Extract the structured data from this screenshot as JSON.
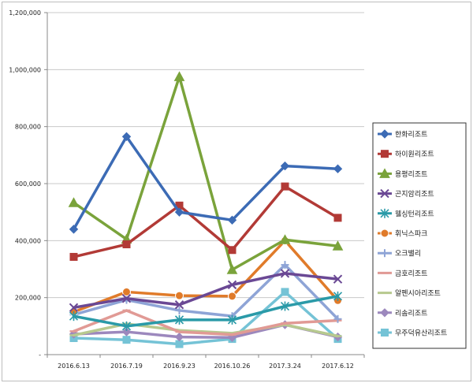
{
  "chart_data": {
    "type": "line",
    "categories": [
      "2016.6.13",
      "2016.7.19",
      "2016.9.23",
      "2016.10.26",
      "2017.3.24",
      "2017.6.12"
    ],
    "ylim": [
      0,
      1200000
    ],
    "y_ticks": [
      "-",
      "200,000",
      "400,000",
      "600,000",
      "800,000",
      "1,000,000",
      "1,200,000"
    ],
    "grid": "horizontal",
    "legend_position": "right",
    "series": [
      {
        "name": "한화리조트",
        "color": "#3c6bb5",
        "marker": "diamond",
        "values": [
          440000,
          765000,
          500000,
          472000,
          662000,
          652000
        ]
      },
      {
        "name": "하이원리조트",
        "color": "#b23a36",
        "marker": "square",
        "values": [
          343000,
          387000,
          523000,
          367000,
          590000,
          480000
        ]
      },
      {
        "name": "용평리조트",
        "color": "#7aa33b",
        "marker": "triangle",
        "values": [
          533000,
          405000,
          975000,
          298000,
          403000,
          381000
        ]
      },
      {
        "name": "곤지암리조트",
        "color": "#6a4894",
        "marker": "x",
        "values": [
          165000,
          197000,
          175000,
          245000,
          285000,
          265000
        ]
      },
      {
        "name": "웰싱턴리조트",
        "color": "#2a9aa8",
        "marker": "star",
        "values": [
          135000,
          100000,
          122000,
          122000,
          170000,
          205000
        ]
      },
      {
        "name": "휘닉스파크",
        "color": "#e07b2a",
        "marker": "circle",
        "values": [
          150000,
          220000,
          207000,
          205000,
          400000,
          190000
        ]
      },
      {
        "name": "오크밸리",
        "color": "#8ea4d6",
        "marker": "plus",
        "values": [
          140000,
          192000,
          155000,
          135000,
          315000,
          125000
        ]
      },
      {
        "name": "금호리조트",
        "color": "#e19a95",
        "marker": "dash",
        "values": [
          82000,
          155000,
          80000,
          70000,
          110000,
          120000
        ]
      },
      {
        "name": "알펜시아리조트",
        "color": "#b7c98f",
        "marker": "dash",
        "values": [
          68000,
          108000,
          85000,
          75000,
          105000,
          65000
        ]
      },
      {
        "name": "리솜리조트",
        "color": "#9c88bd",
        "marker": "diamond",
        "values": [
          72000,
          80000,
          62000,
          60000,
          105000,
          62000
        ]
      },
      {
        "name": "무주덕유산리조트",
        "color": "#75c3d6",
        "marker": "square",
        "values": [
          58000,
          52000,
          37000,
          55000,
          220000,
          55000
        ]
      }
    ]
  }
}
